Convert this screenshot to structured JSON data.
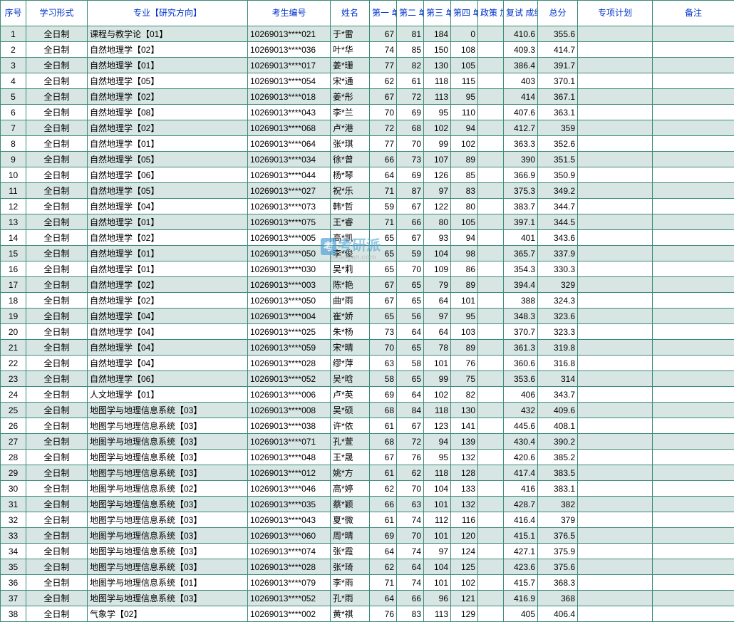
{
  "headers": {
    "seq": "序号",
    "mode": "学习形式",
    "major": "专业【研究方向】",
    "id": "考生编号",
    "name": "姓名",
    "u1": "第一\n单元",
    "u2": "第二\n单元",
    "u3": "第三\n单元",
    "u4": "第四\n单元",
    "bonus": "政策\n加分",
    "ret": "复试\n成绩",
    "total": "总分",
    "plan": "专项计划",
    "note": "备注"
  },
  "colors": {
    "border": "#3a8a7a",
    "header_text": "#0033cc",
    "row_odd": "#d8e6e3",
    "row_even": "#ffffff",
    "body_text": "#000000"
  },
  "watermark": {
    "icon": "考",
    "text": "考研派",
    "sub": "okaoyan.com"
  },
  "rows": [
    {
      "seq": "1",
      "mode": "全日制",
      "major": "课程与教学论【01】",
      "id": "10269013****021",
      "name": "于*雷",
      "u1": "67",
      "u2": "81",
      "u3": "184",
      "u4": "0",
      "bonus": "",
      "ret": "410.6",
      "total": "355.6",
      "plan": "",
      "note": ""
    },
    {
      "seq": "2",
      "mode": "全日制",
      "major": "自然地理学【02】",
      "id": "10269013****036",
      "name": "叶*华",
      "u1": "74",
      "u2": "85",
      "u3": "150",
      "u4": "108",
      "bonus": "",
      "ret": "409.3",
      "total": "414.7",
      "plan": "",
      "note": ""
    },
    {
      "seq": "3",
      "mode": "全日制",
      "major": "自然地理学【01】",
      "id": "10269013****017",
      "name": "姜*珊",
      "u1": "77",
      "u2": "82",
      "u3": "130",
      "u4": "105",
      "bonus": "",
      "ret": "386.4",
      "total": "391.7",
      "plan": "",
      "note": ""
    },
    {
      "seq": "4",
      "mode": "全日制",
      "major": "自然地理学【05】",
      "id": "10269013****054",
      "name": "宋*通",
      "u1": "62",
      "u2": "61",
      "u3": "118",
      "u4": "115",
      "bonus": "",
      "ret": "403",
      "total": "370.1",
      "plan": "",
      "note": ""
    },
    {
      "seq": "5",
      "mode": "全日制",
      "major": "自然地理学【02】",
      "id": "10269013****018",
      "name": "姜*彤",
      "u1": "67",
      "u2": "72",
      "u3": "113",
      "u4": "95",
      "bonus": "",
      "ret": "414",
      "total": "367.1",
      "plan": "",
      "note": ""
    },
    {
      "seq": "6",
      "mode": "全日制",
      "major": "自然地理学【08】",
      "id": "10269013****043",
      "name": "李*兰",
      "u1": "70",
      "u2": "69",
      "u3": "95",
      "u4": "110",
      "bonus": "",
      "ret": "407.6",
      "total": "363.1",
      "plan": "",
      "note": ""
    },
    {
      "seq": "7",
      "mode": "全日制",
      "major": "自然地理学【02】",
      "id": "10269013****068",
      "name": "卢*港",
      "u1": "72",
      "u2": "68",
      "u3": "102",
      "u4": "94",
      "bonus": "",
      "ret": "412.7",
      "total": "359",
      "plan": "",
      "note": ""
    },
    {
      "seq": "8",
      "mode": "全日制",
      "major": "自然地理学【01】",
      "id": "10269013****064",
      "name": "张*琪",
      "u1": "77",
      "u2": "70",
      "u3": "99",
      "u4": "102",
      "bonus": "",
      "ret": "363.3",
      "total": "352.6",
      "plan": "",
      "note": ""
    },
    {
      "seq": "9",
      "mode": "全日制",
      "major": "自然地理学【05】",
      "id": "10269013****034",
      "name": "徐*曾",
      "u1": "66",
      "u2": "73",
      "u3": "107",
      "u4": "89",
      "bonus": "",
      "ret": "390",
      "total": "351.5",
      "plan": "",
      "note": ""
    },
    {
      "seq": "10",
      "mode": "全日制",
      "major": "自然地理学【06】",
      "id": "10269013****044",
      "name": "杨*琴",
      "u1": "64",
      "u2": "69",
      "u3": "126",
      "u4": "85",
      "bonus": "",
      "ret": "366.9",
      "total": "350.9",
      "plan": "",
      "note": ""
    },
    {
      "seq": "11",
      "mode": "全日制",
      "major": "自然地理学【05】",
      "id": "10269013****027",
      "name": "祝*乐",
      "u1": "71",
      "u2": "87",
      "u3": "97",
      "u4": "83",
      "bonus": "",
      "ret": "375.3",
      "total": "349.2",
      "plan": "",
      "note": ""
    },
    {
      "seq": "12",
      "mode": "全日制",
      "major": "自然地理学【04】",
      "id": "10269013****073",
      "name": "韩*哲",
      "u1": "59",
      "u2": "67",
      "u3": "122",
      "u4": "80",
      "bonus": "",
      "ret": "383.7",
      "total": "344.7",
      "plan": "",
      "note": ""
    },
    {
      "seq": "13",
      "mode": "全日制",
      "major": "自然地理学【01】",
      "id": "10269013****075",
      "name": "王*睿",
      "u1": "71",
      "u2": "66",
      "u3": "80",
      "u4": "105",
      "bonus": "",
      "ret": "397.1",
      "total": "344.5",
      "plan": "",
      "note": ""
    },
    {
      "seq": "14",
      "mode": "全日制",
      "major": "自然地理学【02】",
      "id": "10269013****005",
      "name": "高*凯",
      "u1": "65",
      "u2": "67",
      "u3": "93",
      "u4": "94",
      "bonus": "",
      "ret": "401",
      "total": "343.6",
      "plan": "",
      "note": ""
    },
    {
      "seq": "15",
      "mode": "全日制",
      "major": "自然地理学【01】",
      "id": "10269013****050",
      "name": "李*俊",
      "u1": "65",
      "u2": "59",
      "u3": "104",
      "u4": "98",
      "bonus": "",
      "ret": "365.7",
      "total": "337.9",
      "plan": "",
      "note": ""
    },
    {
      "seq": "16",
      "mode": "全日制",
      "major": "自然地理学【01】",
      "id": "10269013****030",
      "name": "吴*莉",
      "u1": "65",
      "u2": "70",
      "u3": "109",
      "u4": "86",
      "bonus": "",
      "ret": "354.3",
      "total": "330.3",
      "plan": "",
      "note": ""
    },
    {
      "seq": "17",
      "mode": "全日制",
      "major": "自然地理学【02】",
      "id": "10269013****003",
      "name": "陈*艳",
      "u1": "67",
      "u2": "65",
      "u3": "79",
      "u4": "89",
      "bonus": "",
      "ret": "394.4",
      "total": "329",
      "plan": "",
      "note": ""
    },
    {
      "seq": "18",
      "mode": "全日制",
      "major": "自然地理学【02】",
      "id": "10269013****050",
      "name": "曲*雨",
      "u1": "67",
      "u2": "65",
      "u3": "64",
      "u4": "101",
      "bonus": "",
      "ret": "388",
      "total": "324.3",
      "plan": "",
      "note": ""
    },
    {
      "seq": "19",
      "mode": "全日制",
      "major": "自然地理学【04】",
      "id": "10269013****004",
      "name": "崔*娇",
      "u1": "65",
      "u2": "56",
      "u3": "97",
      "u4": "95",
      "bonus": "",
      "ret": "348.3",
      "total": "323.6",
      "plan": "",
      "note": ""
    },
    {
      "seq": "20",
      "mode": "全日制",
      "major": "自然地理学【04】",
      "id": "10269013****025",
      "name": "朱*杨",
      "u1": "73",
      "u2": "64",
      "u3": "64",
      "u4": "103",
      "bonus": "",
      "ret": "370.7",
      "total": "323.3",
      "plan": "",
      "note": ""
    },
    {
      "seq": "21",
      "mode": "全日制",
      "major": "自然地理学【04】",
      "id": "10269013****059",
      "name": "宋*晴",
      "u1": "70",
      "u2": "65",
      "u3": "78",
      "u4": "89",
      "bonus": "",
      "ret": "361.3",
      "total": "319.8",
      "plan": "",
      "note": ""
    },
    {
      "seq": "22",
      "mode": "全日制",
      "major": "自然地理学【04】",
      "id": "10269013****028",
      "name": "缪*萍",
      "u1": "63",
      "u2": "58",
      "u3": "101",
      "u4": "76",
      "bonus": "",
      "ret": "360.6",
      "total": "316.8",
      "plan": "",
      "note": ""
    },
    {
      "seq": "23",
      "mode": "全日制",
      "major": "自然地理学【06】",
      "id": "10269013****052",
      "name": "吴*晗",
      "u1": "58",
      "u2": "65",
      "u3": "99",
      "u4": "75",
      "bonus": "",
      "ret": "353.6",
      "total": "314",
      "plan": "",
      "note": ""
    },
    {
      "seq": "24",
      "mode": "全日制",
      "major": "人文地理学【01】",
      "id": "10269013****006",
      "name": "卢*英",
      "u1": "69",
      "u2": "64",
      "u3": "102",
      "u4": "82",
      "bonus": "",
      "ret": "406",
      "total": "343.7",
      "plan": "",
      "note": ""
    },
    {
      "seq": "25",
      "mode": "全日制",
      "major": "地图学与地理信息系统【03】",
      "id": "10269013****008",
      "name": "吴*硕",
      "u1": "68",
      "u2": "84",
      "u3": "118",
      "u4": "130",
      "bonus": "",
      "ret": "432",
      "total": "409.6",
      "plan": "",
      "note": ""
    },
    {
      "seq": "26",
      "mode": "全日制",
      "major": "地图学与地理信息系统【03】",
      "id": "10269013****038",
      "name": "许*依",
      "u1": "61",
      "u2": "67",
      "u3": "123",
      "u4": "141",
      "bonus": "",
      "ret": "445.6",
      "total": "408.1",
      "plan": "",
      "note": ""
    },
    {
      "seq": "27",
      "mode": "全日制",
      "major": "地图学与地理信息系统【03】",
      "id": "10269013****071",
      "name": "孔*萱",
      "u1": "68",
      "u2": "72",
      "u3": "94",
      "u4": "139",
      "bonus": "",
      "ret": "430.4",
      "total": "390.2",
      "plan": "",
      "note": ""
    },
    {
      "seq": "28",
      "mode": "全日制",
      "major": "地图学与地理信息系统【03】",
      "id": "10269013****048",
      "name": "王*晟",
      "u1": "67",
      "u2": "76",
      "u3": "95",
      "u4": "132",
      "bonus": "",
      "ret": "420.6",
      "total": "385.2",
      "plan": "",
      "note": ""
    },
    {
      "seq": "29",
      "mode": "全日制",
      "major": "地图学与地理信息系统【03】",
      "id": "10269013****012",
      "name": "姚*方",
      "u1": "61",
      "u2": "62",
      "u3": "118",
      "u4": "128",
      "bonus": "",
      "ret": "417.4",
      "total": "383.5",
      "plan": "",
      "note": ""
    },
    {
      "seq": "30",
      "mode": "全日制",
      "major": "地图学与地理信息系统【02】",
      "id": "10269013****046",
      "name": "高*婷",
      "u1": "62",
      "u2": "70",
      "u3": "104",
      "u4": "133",
      "bonus": "",
      "ret": "416",
      "total": "383.1",
      "plan": "",
      "note": ""
    },
    {
      "seq": "31",
      "mode": "全日制",
      "major": "地图学与地理信息系统【03】",
      "id": "10269013****035",
      "name": "蔡*颖",
      "u1": "66",
      "u2": "63",
      "u3": "101",
      "u4": "132",
      "bonus": "",
      "ret": "428.7",
      "total": "382",
      "plan": "",
      "note": ""
    },
    {
      "seq": "32",
      "mode": "全日制",
      "major": "地图学与地理信息系统【03】",
      "id": "10269013****043",
      "name": "夏*微",
      "u1": "61",
      "u2": "74",
      "u3": "112",
      "u4": "116",
      "bonus": "",
      "ret": "416.4",
      "total": "379",
      "plan": "",
      "note": ""
    },
    {
      "seq": "33",
      "mode": "全日制",
      "major": "地图学与地理信息系统【03】",
      "id": "10269013****060",
      "name": "周*晴",
      "u1": "69",
      "u2": "70",
      "u3": "101",
      "u4": "120",
      "bonus": "",
      "ret": "415.1",
      "total": "376.5",
      "plan": "",
      "note": ""
    },
    {
      "seq": "34",
      "mode": "全日制",
      "major": "地图学与地理信息系统【03】",
      "id": "10269013****074",
      "name": "张*霞",
      "u1": "64",
      "u2": "74",
      "u3": "97",
      "u4": "124",
      "bonus": "",
      "ret": "427.1",
      "total": "375.9",
      "plan": "",
      "note": ""
    },
    {
      "seq": "35",
      "mode": "全日制",
      "major": "地图学与地理信息系统【03】",
      "id": "10269013****028",
      "name": "张*琦",
      "u1": "62",
      "u2": "64",
      "u3": "104",
      "u4": "125",
      "bonus": "",
      "ret": "423.6",
      "total": "375.6",
      "plan": "",
      "note": ""
    },
    {
      "seq": "36",
      "mode": "全日制",
      "major": "地图学与地理信息系统【01】",
      "id": "10269013****079",
      "name": "李*雨",
      "u1": "71",
      "u2": "74",
      "u3": "101",
      "u4": "102",
      "bonus": "",
      "ret": "415.7",
      "total": "368.3",
      "plan": "",
      "note": ""
    },
    {
      "seq": "37",
      "mode": "全日制",
      "major": "地图学与地理信息系统【03】",
      "id": "10269013****052",
      "name": "孔*雨",
      "u1": "64",
      "u2": "66",
      "u3": "96",
      "u4": "121",
      "bonus": "",
      "ret": "416.9",
      "total": "368",
      "plan": "",
      "note": ""
    },
    {
      "seq": "38",
      "mode": "全日制",
      "major": "气象学【02】",
      "id": "10269013****002",
      "name": "黄*祺",
      "u1": "76",
      "u2": "83",
      "u3": "113",
      "u4": "129",
      "bonus": "",
      "ret": "405",
      "total": "406.4",
      "plan": "",
      "note": ""
    }
  ]
}
